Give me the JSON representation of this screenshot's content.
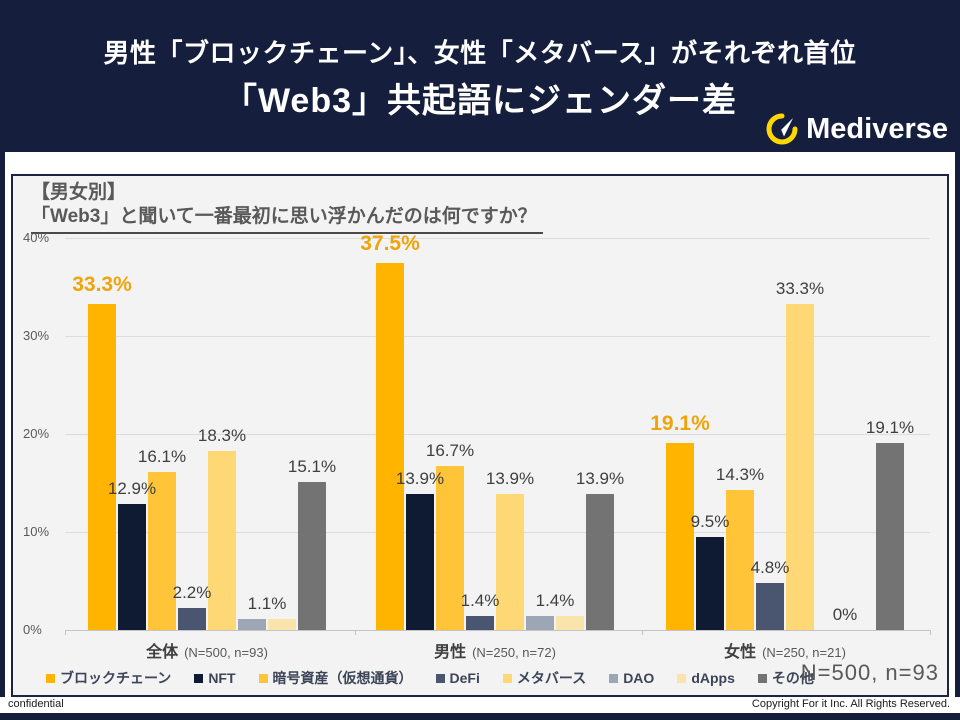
{
  "header": {
    "title_line1": "男性「ブロックチェーン」、女性「メタバース」がそれぞれ首位",
    "title_line2": "「Web3」共起語にジェンダー差",
    "brand": "Mediverse"
  },
  "panel": {
    "heading_line1": "【男女別】",
    "heading_line2": "「Web3」と聞いて一番最初に思い浮かんだのは何ですか？",
    "sample_note": "N=500, n=93"
  },
  "footer": {
    "left": "confidential",
    "right": "Copyright For it Inc. All Rights Reserved."
  },
  "colors": {
    "header_bg": "#151F3D",
    "panel_bg": "#F3F3F3",
    "highlight_label": "#F0A30A",
    "logo_yellow": "#FFD800"
  },
  "chart_data": {
    "type": "bar",
    "title": "【男女別】「Web3」と聞いて一番最初に思い浮かんだのは何ですか？",
    "xlabel": "",
    "ylabel": "",
    "ylim": [
      0,
      40
    ],
    "yticks": [
      "40%",
      "30%",
      "20%",
      "10%",
      "0%"
    ],
    "grid": true,
    "legend_position": "bottom",
    "series_names": [
      "ブロックチェーン",
      "NFT",
      "暗号資産（仮想通貨）",
      "DeFi",
      "メタバース",
      "DAO",
      "dApps",
      "その他"
    ],
    "series_colors": [
      "#FFB400",
      "#0F1B33",
      "#FFC438",
      "#4A566F",
      "#FFD876",
      "#9DA6B5",
      "#F9E5AC",
      "#737373"
    ],
    "groups": [
      {
        "category": "全体",
        "note": "(N=500, n=93)",
        "values": [
          33.3,
          12.9,
          16.1,
          2.2,
          18.3,
          1.1,
          1.1,
          15.1
        ],
        "labels": [
          {
            "text": "33.3%",
            "bar": 0,
            "highlight": true
          },
          {
            "text": "12.9%",
            "bar": 1
          },
          {
            "text": "16.1%",
            "bar": 2
          },
          {
            "text": "2.2%",
            "bar": 3
          },
          {
            "text": "18.3%",
            "bar": 4
          },
          {
            "text": "1.1%",
            "bar": 5,
            "span": 2
          },
          {
            "text": "15.1%",
            "bar": 7
          }
        ]
      },
      {
        "category": "男性",
        "note": "(N=250, n=72)",
        "values": [
          37.5,
          13.9,
          16.7,
          1.4,
          13.9,
          1.4,
          1.4,
          13.9
        ],
        "labels": [
          {
            "text": "37.5%",
            "bar": 0,
            "highlight": true
          },
          {
            "text": "13.9%",
            "bar": 1
          },
          {
            "text": "16.7%",
            "bar": 2
          },
          {
            "text": "1.4%",
            "bar": 3
          },
          {
            "text": "13.9%",
            "bar": 4
          },
          {
            "text": "1.4%",
            "bar": 5,
            "span": 2
          },
          {
            "text": "13.9%",
            "bar": 7
          }
        ]
      },
      {
        "category": "女性",
        "note": "(N=250, n=21)",
        "values": [
          19.1,
          9.5,
          14.3,
          4.8,
          33.3,
          0,
          0,
          19.1
        ],
        "labels": [
          {
            "text": "19.1%",
            "bar": 0,
            "highlight": true
          },
          {
            "text": "9.5%",
            "bar": 1
          },
          {
            "text": "14.3%",
            "bar": 2
          },
          {
            "text": "4.8%",
            "bar": 3
          },
          {
            "text": "33.3%",
            "bar": 4
          },
          {
            "text": "0%",
            "bar": 5,
            "span": 2
          },
          {
            "text": "19.1%",
            "bar": 7
          }
        ]
      }
    ]
  }
}
